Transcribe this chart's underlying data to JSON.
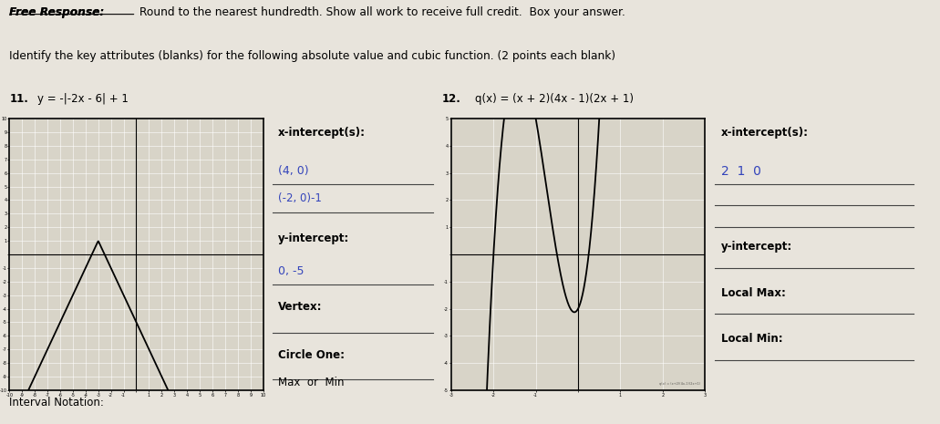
{
  "bg_color": "#e8e4dc",
  "title_line1_bold": "Free Response:",
  "title_line1_rest": " Round to the nearest hundredth. Show all work to receive full credit.  Box your answer.",
  "title_line2": "Identify the key attributes (blanks) for the following absolute value and cubic function. (2 points each blank)",
  "prob11_number": "11.",
  "prob11_label": "y = -|-2x - 6| + 1",
  "prob12_number": "12.",
  "prob12_label": "q(x) = (x + 2)(4x - 1)(2x + 1)",
  "graph1_xlim": [
    -10,
    10
  ],
  "graph1_ylim": [
    -10,
    10
  ],
  "graph2_xlim": [
    -3,
    3
  ],
  "graph2_ylim": [
    -5,
    5
  ],
  "graph_bg": "#d8d4c8",
  "labels_11": {
    "x_intercept_label": "x-intercept(s):",
    "hw_xi1": "(4, 0)",
    "hw_xi2": "(-2, 0)-1",
    "y_intercept_label": "y-intercept:",
    "hw_yi": "0, -5",
    "vertex_label": "Vertex:",
    "circle_one_label": "Circle One:",
    "max_or_min": "Max  or  Min"
  },
  "labels_12": {
    "x_intercept_label": "x-intercept(s):",
    "hw_xi": "2  1  0",
    "y_intercept_label": "y-intercept:",
    "local_max_label": "Local Max:",
    "local_min_label": "Local Min:"
  },
  "footer": "Interval Notation:",
  "hw_color": "#3344bb",
  "line_color": "#444444"
}
